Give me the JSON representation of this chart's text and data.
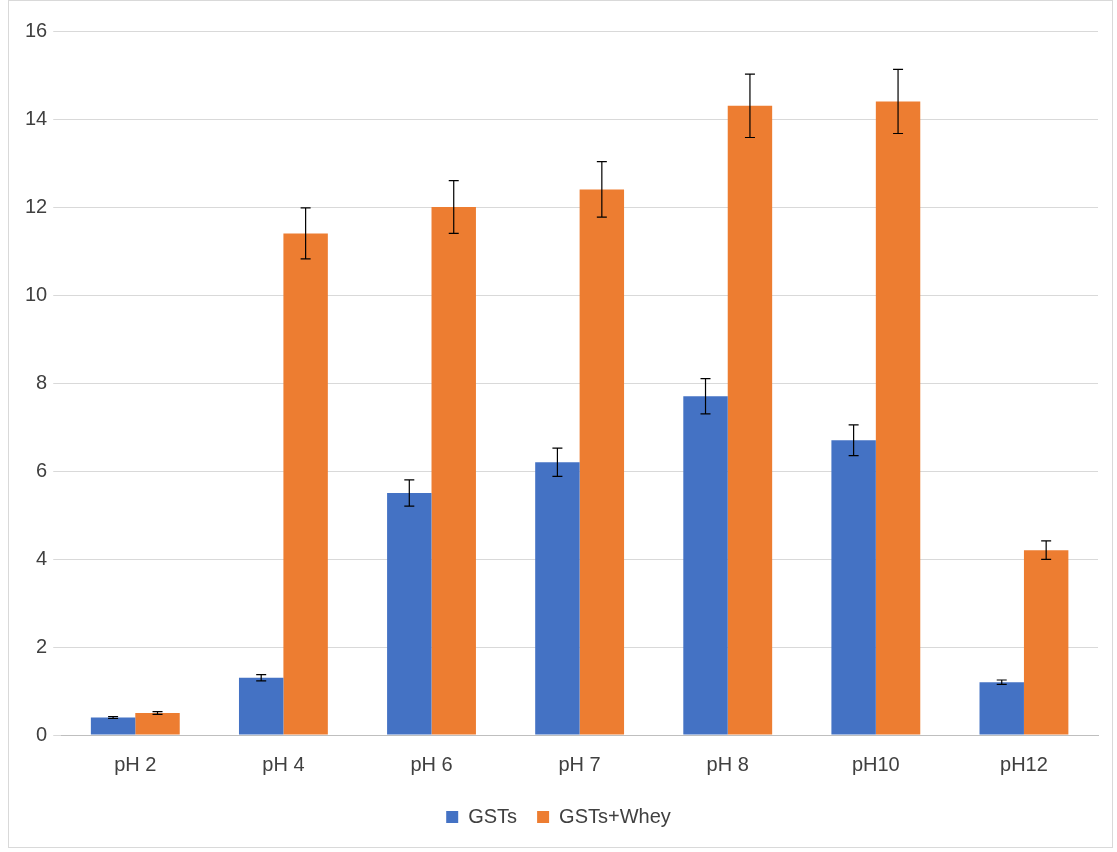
{
  "chart_data": {
    "type": "bar",
    "categories": [
      "pH 2",
      "pH 4",
      "pH 6",
      "pH 7",
      "pH 8",
      "pH10",
      "pH12"
    ],
    "series": [
      {
        "name": "GSTs",
        "color": "#4472c4",
        "values": [
          0.4,
          1.3,
          5.5,
          6.2,
          7.7,
          6.7,
          1.2
        ],
        "errors": [
          0.02,
          0.07,
          0.3,
          0.32,
          0.4,
          0.35,
          0.05
        ]
      },
      {
        "name": "GSTs+Whey",
        "color": "#ed7d31",
        "values": [
          0.5,
          11.4,
          12.0,
          12.4,
          14.3,
          14.4,
          4.2
        ],
        "errors": [
          0.03,
          0.58,
          0.6,
          0.63,
          0.72,
          0.73,
          0.21
        ]
      }
    ],
    "ylim": [
      0,
      16
    ],
    "yticks": [
      0,
      2,
      4,
      6,
      8,
      10,
      12,
      14,
      16
    ],
    "grid": "y",
    "legend": "bottom"
  }
}
